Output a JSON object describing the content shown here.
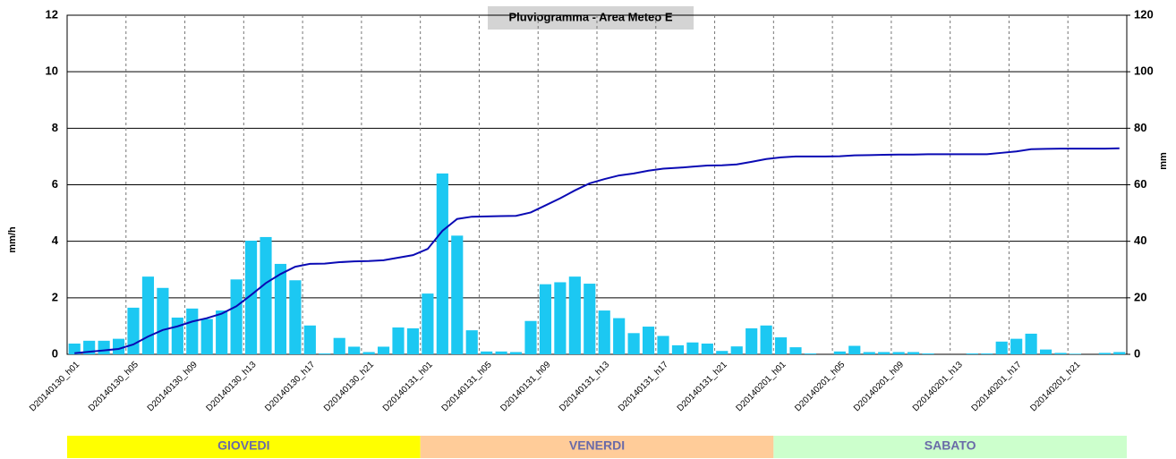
{
  "chart_data": {
    "type": "bar-line",
    "title": "Pluviogramma - Area Meteo E",
    "ylabel": "mm/h",
    "y2label": "mm",
    "categories": [
      "D20140130_h01",
      null,
      null,
      null,
      "D20140130_h05",
      null,
      null,
      null,
      "D20140130_h09",
      null,
      null,
      null,
      "D20140130_h13",
      null,
      null,
      null,
      "D20140130_h17",
      null,
      null,
      null,
      "D20140130_h21",
      null,
      null,
      null,
      "D20140131_h01",
      null,
      null,
      null,
      "D20140131_h05",
      null,
      null,
      null,
      "D20140131_h09",
      null,
      null,
      null,
      "D20140131_h13",
      null,
      null,
      null,
      "D20140131_h17",
      null,
      null,
      null,
      "D20140131_h21",
      null,
      null,
      null,
      "D20140201_h01",
      null,
      null,
      null,
      "D20140201_h05",
      null,
      null,
      null,
      "D20140201_h09",
      null,
      null,
      null,
      "D20140201_h13",
      null,
      null,
      null,
      "D20140201_h17",
      null,
      null,
      null,
      "D20140201_h21",
      null,
      null,
      null
    ],
    "series": [
      {
        "type": "bar",
        "color": "#1cc8f2",
        "values": [
          0.38,
          0.48,
          0.48,
          0.55,
          1.65,
          2.75,
          2.35,
          1.3,
          1.62,
          1.25,
          1.55,
          2.65,
          4.02,
          4.15,
          3.2,
          2.62,
          1.02,
          0.03,
          0.58,
          0.27,
          0.08,
          0.27,
          0.95,
          0.92,
          2.15,
          6.4,
          4.2,
          0.85,
          0.1,
          0.1,
          0.08,
          1.18,
          2.48,
          2.55,
          2.75,
          2.5,
          1.55,
          1.28,
          0.75,
          0.98,
          0.65,
          0.32,
          0.42,
          0.38,
          0.12,
          0.28,
          0.92,
          1.02,
          0.6,
          0.25,
          0.03,
          0,
          0.1,
          0.3,
          0.08,
          0.08,
          0.08,
          0.08,
          0.03,
          0,
          0,
          0.03,
          0.03,
          0.45,
          0.55,
          0.73,
          0.17,
          0.05,
          0.02,
          0,
          0.05,
          0.08
        ]
      },
      {
        "type": "line",
        "axis": "y2",
        "color": "#0a0ab4",
        "values": [
          0.4,
          0.9,
          1.4,
          1.9,
          3.5,
          6.3,
          8.6,
          9.9,
          11.6,
          12.8,
          14.4,
          17.0,
          21.0,
          25.2,
          28.4,
          31.0,
          32.0,
          32.1,
          32.6,
          32.9,
          33.0,
          33.3,
          34.2,
          35.1,
          37.3,
          43.7,
          47.9,
          48.7,
          48.8,
          48.9,
          49.0,
          50.2,
          52.7,
          55.2,
          58.0,
          60.5,
          62.0,
          63.3,
          64.0,
          65.0,
          65.7,
          66.0,
          66.4,
          66.8,
          66.9,
          67.2,
          68.1,
          69.1,
          69.7,
          70.0,
          70.0,
          70.0,
          70.1,
          70.4,
          70.5,
          70.6,
          70.7,
          70.7,
          70.8,
          70.8,
          70.8,
          70.8,
          70.8,
          71.3,
          71.8,
          72.6,
          72.7,
          72.8,
          72.8,
          72.8,
          72.8,
          72.9
        ]
      }
    ],
    "ylim": [
      0,
      12
    ],
    "yticks": [
      0,
      2,
      4,
      6,
      8,
      10,
      12
    ],
    "y2lim": [
      0,
      120
    ],
    "y2ticks": [
      0,
      20,
      40,
      60,
      80,
      100,
      120
    ],
    "grid": true,
    "bands": [
      {
        "label": "GIOVEDI",
        "color": "#ffff00"
      },
      {
        "label": "VENERDI",
        "color": "#ffcc99"
      },
      {
        "label": "SABATO",
        "color": "#ccffcc"
      }
    ]
  }
}
